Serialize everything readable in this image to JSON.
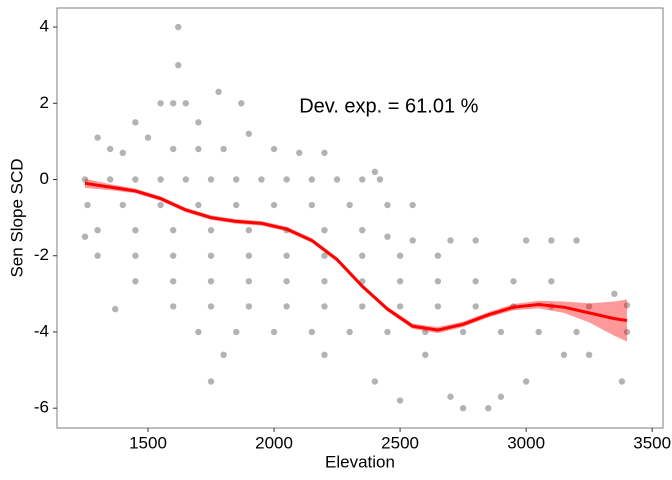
{
  "chart_data": {
    "type": "scatter",
    "x_label": "Elevation",
    "y_label": "Sen Slope SCD",
    "annotation": {
      "text": "Dev. exp. = 61.01 %",
      "x": 2100,
      "y": 1.9
    },
    "xlim": [
      1139,
      3543
    ],
    "xticks": [
      1500,
      2000,
      2500,
      3000,
      3500
    ],
    "ylim": [
      -6.52,
      4.5
    ],
    "yticks": [
      -6,
      -4,
      -2,
      0,
      2,
      4
    ],
    "grid": false,
    "points": {
      "color": "#b3b3b3",
      "x": [
        1250,
        1350,
        1450,
        1550,
        1650,
        1750,
        1850,
        1950,
        2050,
        2150,
        2250,
        2350,
        2420,
        1620,
        1620,
        1780,
        1550,
        1600,
        1650,
        1870,
        1300,
        1400,
        1500,
        1600,
        1700,
        1800,
        1900,
        2000,
        2100,
        1450,
        1700,
        2200,
        2400,
        1350,
        1260,
        1400,
        1550,
        1700,
        1850,
        2000,
        2150,
        2300,
        2450,
        2550,
        1300,
        1450,
        1600,
        1750,
        1900,
        2050,
        2200,
        2350,
        1300,
        1450,
        1600,
        1750,
        1900,
        2050,
        2200,
        2350,
        2500,
        2650,
        1450,
        1600,
        1750,
        1900,
        2050,
        2200,
        2350,
        2500,
        2650,
        2800,
        2950,
        3100,
        1600,
        1750,
        1900,
        2050,
        2200,
        2350,
        2500,
        2650,
        2800,
        2950,
        3100,
        3250,
        1700,
        1850,
        2000,
        2150,
        2300,
        2450,
        2600,
        2750,
        2900,
        3050,
        3200,
        3400,
        1800,
        1750,
        2200,
        2400,
        2500,
        2700,
        2750,
        2850,
        2900,
        3000,
        3380,
        3250,
        3150,
        2600,
        1370,
        1250,
        3350,
        3400,
        3000,
        2800,
        3100,
        3200,
        2450,
        2550,
        2700
      ],
      "y": [
        0,
        0,
        0,
        0,
        0,
        0,
        0,
        0,
        0,
        0,
        0,
        0,
        0,
        4,
        3,
        2.3,
        2,
        2,
        2,
        2,
        1.1,
        0.7,
        1.1,
        0.8,
        0.8,
        0.8,
        1.2,
        0.8,
        0.7,
        1.5,
        1.5,
        0.7,
        0.2,
        0.8,
        -0.67,
        -0.67,
        -0.67,
        -0.67,
        -0.67,
        -0.67,
        -0.67,
        -0.67,
        -0.67,
        -0.67,
        -1.33,
        -1.33,
        -1.33,
        -1.33,
        -1.33,
        -1.33,
        -1.33,
        -1.33,
        -2,
        -2,
        -2,
        -2,
        -2,
        -2,
        -2,
        -2,
        -2,
        -2,
        -2.67,
        -2.67,
        -2.67,
        -2.67,
        -2.67,
        -2.67,
        -2.67,
        -2.67,
        -2.67,
        -2.67,
        -2.67,
        -2.67,
        -3.33,
        -3.33,
        -3.33,
        -3.33,
        -3.33,
        -3.33,
        -3.33,
        -3.33,
        -3.33,
        -3.33,
        -3.33,
        -3.33,
        -4,
        -4,
        -4,
        -4,
        -4,
        -4,
        -4,
        -4,
        -4,
        -4,
        -4,
        -4,
        -4.6,
        -5.3,
        -4.6,
        -5.3,
        -5.8,
        -5.7,
        -6,
        -6,
        -5.7,
        -5.3,
        -5.3,
        -4.6,
        -4.6,
        -4.6,
        -3.4,
        -1.5,
        -3,
        -3.3,
        -1.6,
        -1.6,
        -1.6,
        -1.6,
        -1.5,
        -1.6,
        -1.6
      ]
    },
    "smooth": {
      "color": "#ff0000",
      "x": [
        1250,
        1350,
        1450,
        1550,
        1650,
        1750,
        1850,
        1950,
        2050,
        2150,
        2250,
        2350,
        2450,
        2550,
        2650,
        2750,
        2850,
        2950,
        3050,
        3150,
        3250,
        3350,
        3400
      ],
      "values": [
        -0.1,
        -0.2,
        -0.3,
        -0.5,
        -0.8,
        -1.0,
        -1.1,
        -1.15,
        -1.3,
        -1.6,
        -2.1,
        -2.8,
        -3.4,
        -3.85,
        -3.95,
        -3.8,
        -3.55,
        -3.35,
        -3.28,
        -3.35,
        -3.5,
        -3.65,
        -3.7
      ],
      "lower": [
        -0.22,
        -0.28,
        -0.36,
        -0.56,
        -0.86,
        -1.06,
        -1.16,
        -1.21,
        -1.36,
        -1.66,
        -2.16,
        -2.86,
        -3.46,
        -3.92,
        -4.03,
        -3.87,
        -3.62,
        -3.43,
        -3.38,
        -3.5,
        -3.75,
        -4.1,
        -4.25
      ],
      "upper": [
        0.02,
        -0.12,
        -0.24,
        -0.44,
        -0.74,
        -0.94,
        -1.04,
        -1.09,
        -1.24,
        -1.54,
        -2.04,
        -2.74,
        -3.34,
        -3.78,
        -3.87,
        -3.73,
        -3.48,
        -3.27,
        -3.18,
        -3.2,
        -3.25,
        -3.2,
        -3.15
      ]
    }
  }
}
